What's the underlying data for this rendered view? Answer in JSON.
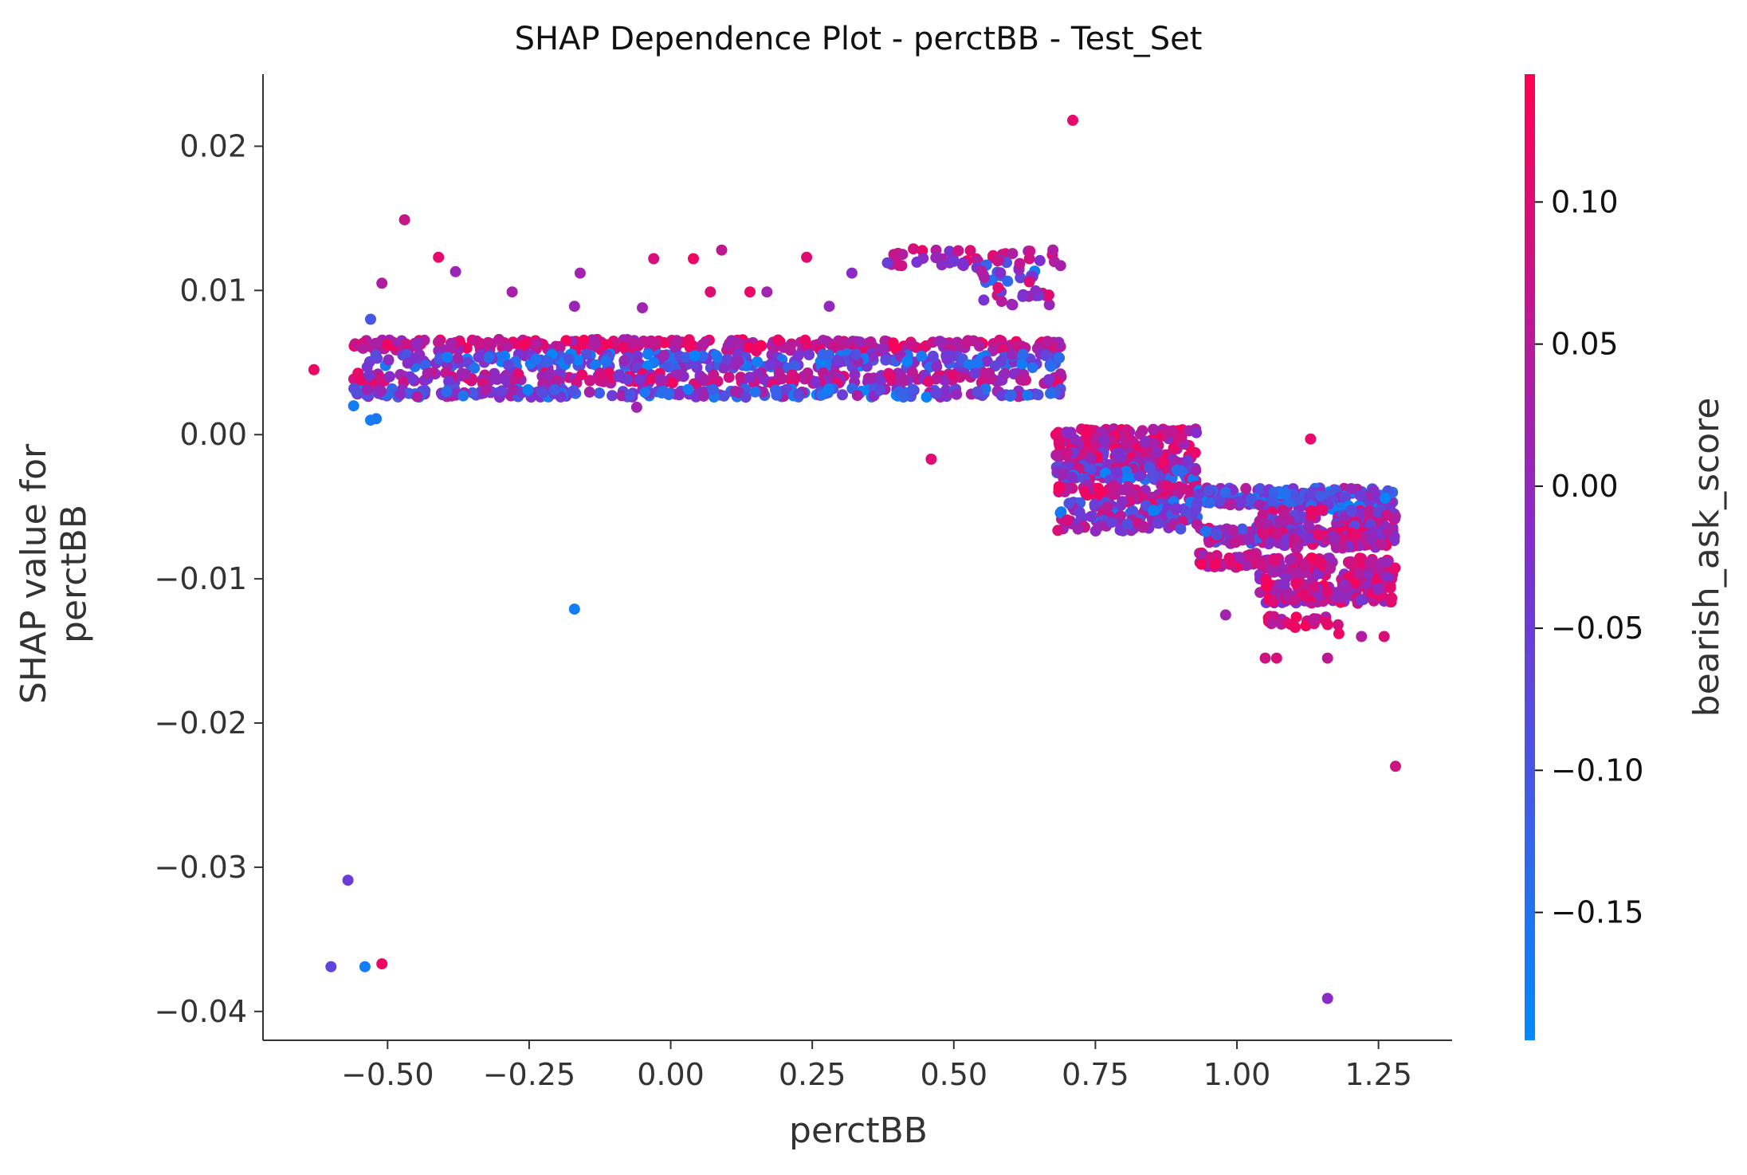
{
  "chart_data": {
    "type": "scatter",
    "title": "SHAP Dependence Plot - perctBB - Test_Set",
    "xlabel": "perctBB",
    "ylabel": "SHAP value for\nperctBB",
    "xlim": [
      -0.72,
      1.38
    ],
    "ylim": [
      -0.042,
      0.025
    ],
    "x_ticks": [
      -0.5,
      -0.25,
      0.0,
      0.25,
      0.5,
      0.75,
      1.0,
      1.25
    ],
    "x_tick_labels": [
      "−0.50",
      "−0.25",
      "0.00",
      "0.25",
      "0.50",
      "0.75",
      "1.00",
      "1.25"
    ],
    "y_ticks": [
      0.02,
      0.01,
      0.0,
      -0.01,
      -0.02,
      -0.03,
      -0.04
    ],
    "y_tick_labels": [
      "0.02",
      "0.01",
      "0.00",
      "−0.01",
      "−0.02",
      "−0.03",
      "−0.04"
    ],
    "grid": false,
    "colorbar": {
      "label": "bearish_ask_score",
      "range": [
        -0.195,
        0.145
      ],
      "ticks": [
        0.1,
        0.05,
        0.0,
        -0.05,
        -0.1,
        -0.15
      ],
      "tick_labels": [
        "0.10",
        "0.05",
        "0.00",
        "−0.05",
        "−0.10",
        "−0.15"
      ],
      "colors": {
        "low": "#008afb",
        "mid": "#7f2fd0",
        "high": "#ff0052"
      }
    },
    "outliers": [
      {
        "x": -0.63,
        "y": 0.0045,
        "c": 0.12
      },
      {
        "x": -0.47,
        "y": 0.0149,
        "c": 0.07
      },
      {
        "x": -0.51,
        "y": 0.0105,
        "c": 0.04
      },
      {
        "x": -0.53,
        "y": 0.008,
        "c": -0.1
      },
      {
        "x": -0.56,
        "y": 0.002,
        "c": -0.17
      },
      {
        "x": -0.53,
        "y": 0.001,
        "c": -0.17
      },
      {
        "x": -0.52,
        "y": 0.0011,
        "c": -0.16
      },
      {
        "x": -0.41,
        "y": 0.0123,
        "c": 0.11
      },
      {
        "x": -0.38,
        "y": 0.0113,
        "c": 0.01
      },
      {
        "x": -0.28,
        "y": 0.0099,
        "c": 0.03
      },
      {
        "x": -0.16,
        "y": 0.0112,
        "c": 0.02
      },
      {
        "x": -0.17,
        "y": 0.0089,
        "c": 0.01
      },
      {
        "x": -0.05,
        "y": 0.0088,
        "c": 0.02
      },
      {
        "x": -0.03,
        "y": 0.0122,
        "c": 0.09
      },
      {
        "x": 0.04,
        "y": 0.0122,
        "c": 0.12
      },
      {
        "x": 0.07,
        "y": 0.0099,
        "c": 0.1
      },
      {
        "x": 0.09,
        "y": 0.0128,
        "c": 0.06
      },
      {
        "x": 0.14,
        "y": 0.0099,
        "c": 0.12
      },
      {
        "x": 0.17,
        "y": 0.0099,
        "c": 0.02
      },
      {
        "x": 0.24,
        "y": 0.0123,
        "c": 0.1
      },
      {
        "x": 0.28,
        "y": 0.0089,
        "c": 0.0
      },
      {
        "x": 0.32,
        "y": 0.0112,
        "c": -0.01
      },
      {
        "x": -0.06,
        "y": 0.0019,
        "c": 0.02
      },
      {
        "x": -0.17,
        "y": -0.0121,
        "c": -0.17
      },
      {
        "x": 0.46,
        "y": -0.0017,
        "c": 0.1
      },
      {
        "x": 0.71,
        "y": 0.0218,
        "c": 0.11
      },
      {
        "x": -0.57,
        "y": -0.0309,
        "c": -0.05
      },
      {
        "x": -0.6,
        "y": -0.0369,
        "c": -0.07
      },
      {
        "x": -0.54,
        "y": -0.0369,
        "c": -0.17
      },
      {
        "x": -0.51,
        "y": -0.0367,
        "c": 0.12
      },
      {
        "x": 1.16,
        "y": -0.0391,
        "c": -0.01
      },
      {
        "x": 1.28,
        "y": -0.023,
        "c": 0.08
      },
      {
        "x": 1.13,
        "y": -0.0003,
        "c": 0.11
      },
      {
        "x": 1.05,
        "y": -0.0155,
        "c": 0.08
      },
      {
        "x": 1.07,
        "y": -0.0155,
        "c": 0.09
      },
      {
        "x": 1.16,
        "y": -0.0155,
        "c": 0.06
      },
      {
        "x": 1.22,
        "y": -0.014,
        "c": 0.04
      },
      {
        "x": 1.26,
        "y": -0.014,
        "c": 0.09
      },
      {
        "x": 1.18,
        "y": -0.0138,
        "c": 0.12
      },
      {
        "x": 0.98,
        "y": -0.0125,
        "c": 0.02
      }
    ],
    "bands": [
      {
        "x": [
          -0.56,
          0.69
        ],
        "y": 0.0062,
        "spread": 0.0004,
        "n": 280,
        "cmin": 0.0,
        "cmax": 0.14
      },
      {
        "x": [
          -0.56,
          0.69
        ],
        "y": 0.0051,
        "spread": 0.0005,
        "n": 280,
        "cmin": -0.19,
        "cmax": 0.02
      },
      {
        "x": [
          -0.56,
          0.69
        ],
        "y": 0.0039,
        "spread": 0.0004,
        "n": 250,
        "cmin": -0.05,
        "cmax": 0.13
      },
      {
        "x": [
          -0.56,
          0.69
        ],
        "y": 0.0029,
        "spread": 0.0003,
        "n": 230,
        "cmin": -0.19,
        "cmax": 0.05
      },
      {
        "x": [
          0.38,
          0.69
        ],
        "y": 0.0123,
        "spread": 0.0006,
        "n": 40,
        "cmin": -0.05,
        "cmax": 0.14
      },
      {
        "x": [
          0.54,
          0.67
        ],
        "y": 0.0113,
        "spread": 0.0008,
        "n": 25,
        "cmin": -0.19,
        "cmax": 0.1
      },
      {
        "x": [
          0.55,
          0.67
        ],
        "y": 0.0096,
        "spread": 0.0006,
        "n": 18,
        "cmin": -0.06,
        "cmax": 0.12
      },
      {
        "x": [
          0.68,
          0.93
        ],
        "y": -0.0003,
        "spread": 0.0007,
        "n": 110,
        "cmin": -0.02,
        "cmax": 0.14
      },
      {
        "x": [
          0.68,
          0.93
        ],
        "y": -0.0018,
        "spread": 0.0006,
        "n": 110,
        "cmin": -0.06,
        "cmax": 0.14
      },
      {
        "x": [
          0.68,
          0.93
        ],
        "y": -0.0027,
        "spread": 0.0005,
        "n": 90,
        "cmin": -0.19,
        "cmax": 0.1
      },
      {
        "x": [
          0.68,
          0.93
        ],
        "y": -0.004,
        "spread": 0.0005,
        "n": 70,
        "cmin": 0.0,
        "cmax": 0.14
      },
      {
        "x": [
          0.68,
          0.93
        ],
        "y": -0.0053,
        "spread": 0.0007,
        "n": 80,
        "cmin": -0.19,
        "cmax": 0.12
      },
      {
        "x": [
          0.68,
          0.93
        ],
        "y": -0.0063,
        "spread": 0.0004,
        "n": 45,
        "cmin": -0.1,
        "cmax": 0.1
      },
      {
        "x": [
          0.93,
          1.05
        ],
        "y": -0.0043,
        "spread": 0.0006,
        "n": 60,
        "cmin": -0.19,
        "cmax": 0.05
      },
      {
        "x": [
          0.93,
          1.05
        ],
        "y": -0.007,
        "spread": 0.0006,
        "n": 60,
        "cmin": -0.15,
        "cmax": 0.12
      },
      {
        "x": [
          0.93,
          1.05
        ],
        "y": -0.0087,
        "spread": 0.0005,
        "n": 50,
        "cmin": 0.0,
        "cmax": 0.14
      },
      {
        "x": [
          1.04,
          1.28
        ],
        "y": -0.0045,
        "spread": 0.0008,
        "n": 120,
        "cmin": -0.19,
        "cmax": 0.06
      },
      {
        "x": [
          1.04,
          1.28
        ],
        "y": -0.006,
        "spread": 0.0008,
        "n": 120,
        "cmin": -0.1,
        "cmax": 0.13
      },
      {
        "x": [
          1.04,
          1.28
        ],
        "y": -0.0073,
        "spread": 0.0006,
        "n": 110,
        "cmin": -0.05,
        "cmax": 0.14
      },
      {
        "x": [
          1.04,
          1.28
        ],
        "y": -0.0093,
        "spread": 0.0008,
        "n": 120,
        "cmin": -0.02,
        "cmax": 0.14
      },
      {
        "x": [
          1.04,
          1.28
        ],
        "y": -0.011,
        "spread": 0.0007,
        "n": 130,
        "cmin": -0.05,
        "cmax": 0.14
      },
      {
        "x": [
          1.05,
          1.18
        ],
        "y": -0.013,
        "spread": 0.0004,
        "n": 22,
        "cmin": 0.0,
        "cmax": 0.14
      }
    ]
  }
}
